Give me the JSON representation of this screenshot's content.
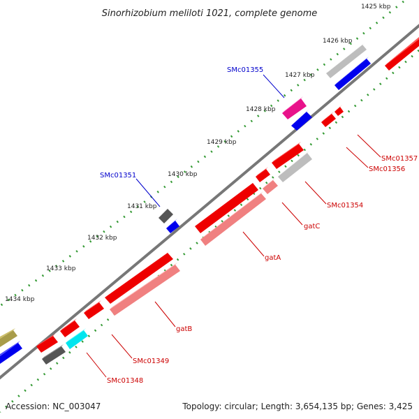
{
  "title": "Sinorhizobium meliloti 1021, complete genome",
  "ticks": [
    "1425 kbp",
    "1426 kbp",
    "1427 kbp",
    "1428 kbp",
    "1429 kbp",
    "1430 kbp",
    "1431 kbp",
    "1432 kbp",
    "1433 kbp",
    "1434 kbp"
  ],
  "gene_labels": {
    "smc01355": "SMc01355",
    "smc01351": "SMc01351",
    "smc01357": "SMc01357",
    "smc01356": "SMc01356",
    "smc01354": "SMc01354",
    "gatc": "gatC",
    "gata": "gatA",
    "gatb": "gatB",
    "smc01349": "SMc01349",
    "smc01348": "SMc01348"
  },
  "footer": {
    "accession": "Accession: NC_003047",
    "stats": "Topology: circular; Length: 3,654,135 bp; Genes: 3,425"
  },
  "colors": {
    "forward_label": "#0000cc",
    "reverse_label": "#cc0000",
    "backbone": "#777777",
    "ticks": "#339933"
  }
}
